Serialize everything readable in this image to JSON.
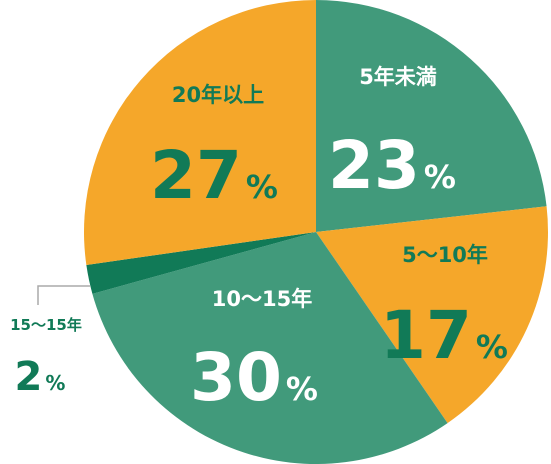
{
  "chart_data": {
    "type": "pie",
    "title": "",
    "slices": [
      {
        "label": "5年未満",
        "value": 23,
        "display": "23",
        "unit": "%",
        "color": "#419a7b",
        "text_color": "#ffffff"
      },
      {
        "label": "5〜10年",
        "value": 17,
        "display": "17",
        "unit": "%",
        "color": "#f5a72a",
        "text_color": "#117a57"
      },
      {
        "label": "10〜15年",
        "value": 30,
        "display": "30",
        "unit": "%",
        "color": "#419a7b",
        "text_color": "#ffffff"
      },
      {
        "label": "15〜15年",
        "value": 2,
        "display": "2",
        "unit": "%",
        "color": "#117a57",
        "text_color": "#117a57"
      },
      {
        "label": "20年以上",
        "value": 27,
        "display": "27",
        "unit": "%",
        "color": "#f5a72a",
        "text_color": "#117a57"
      }
    ]
  }
}
